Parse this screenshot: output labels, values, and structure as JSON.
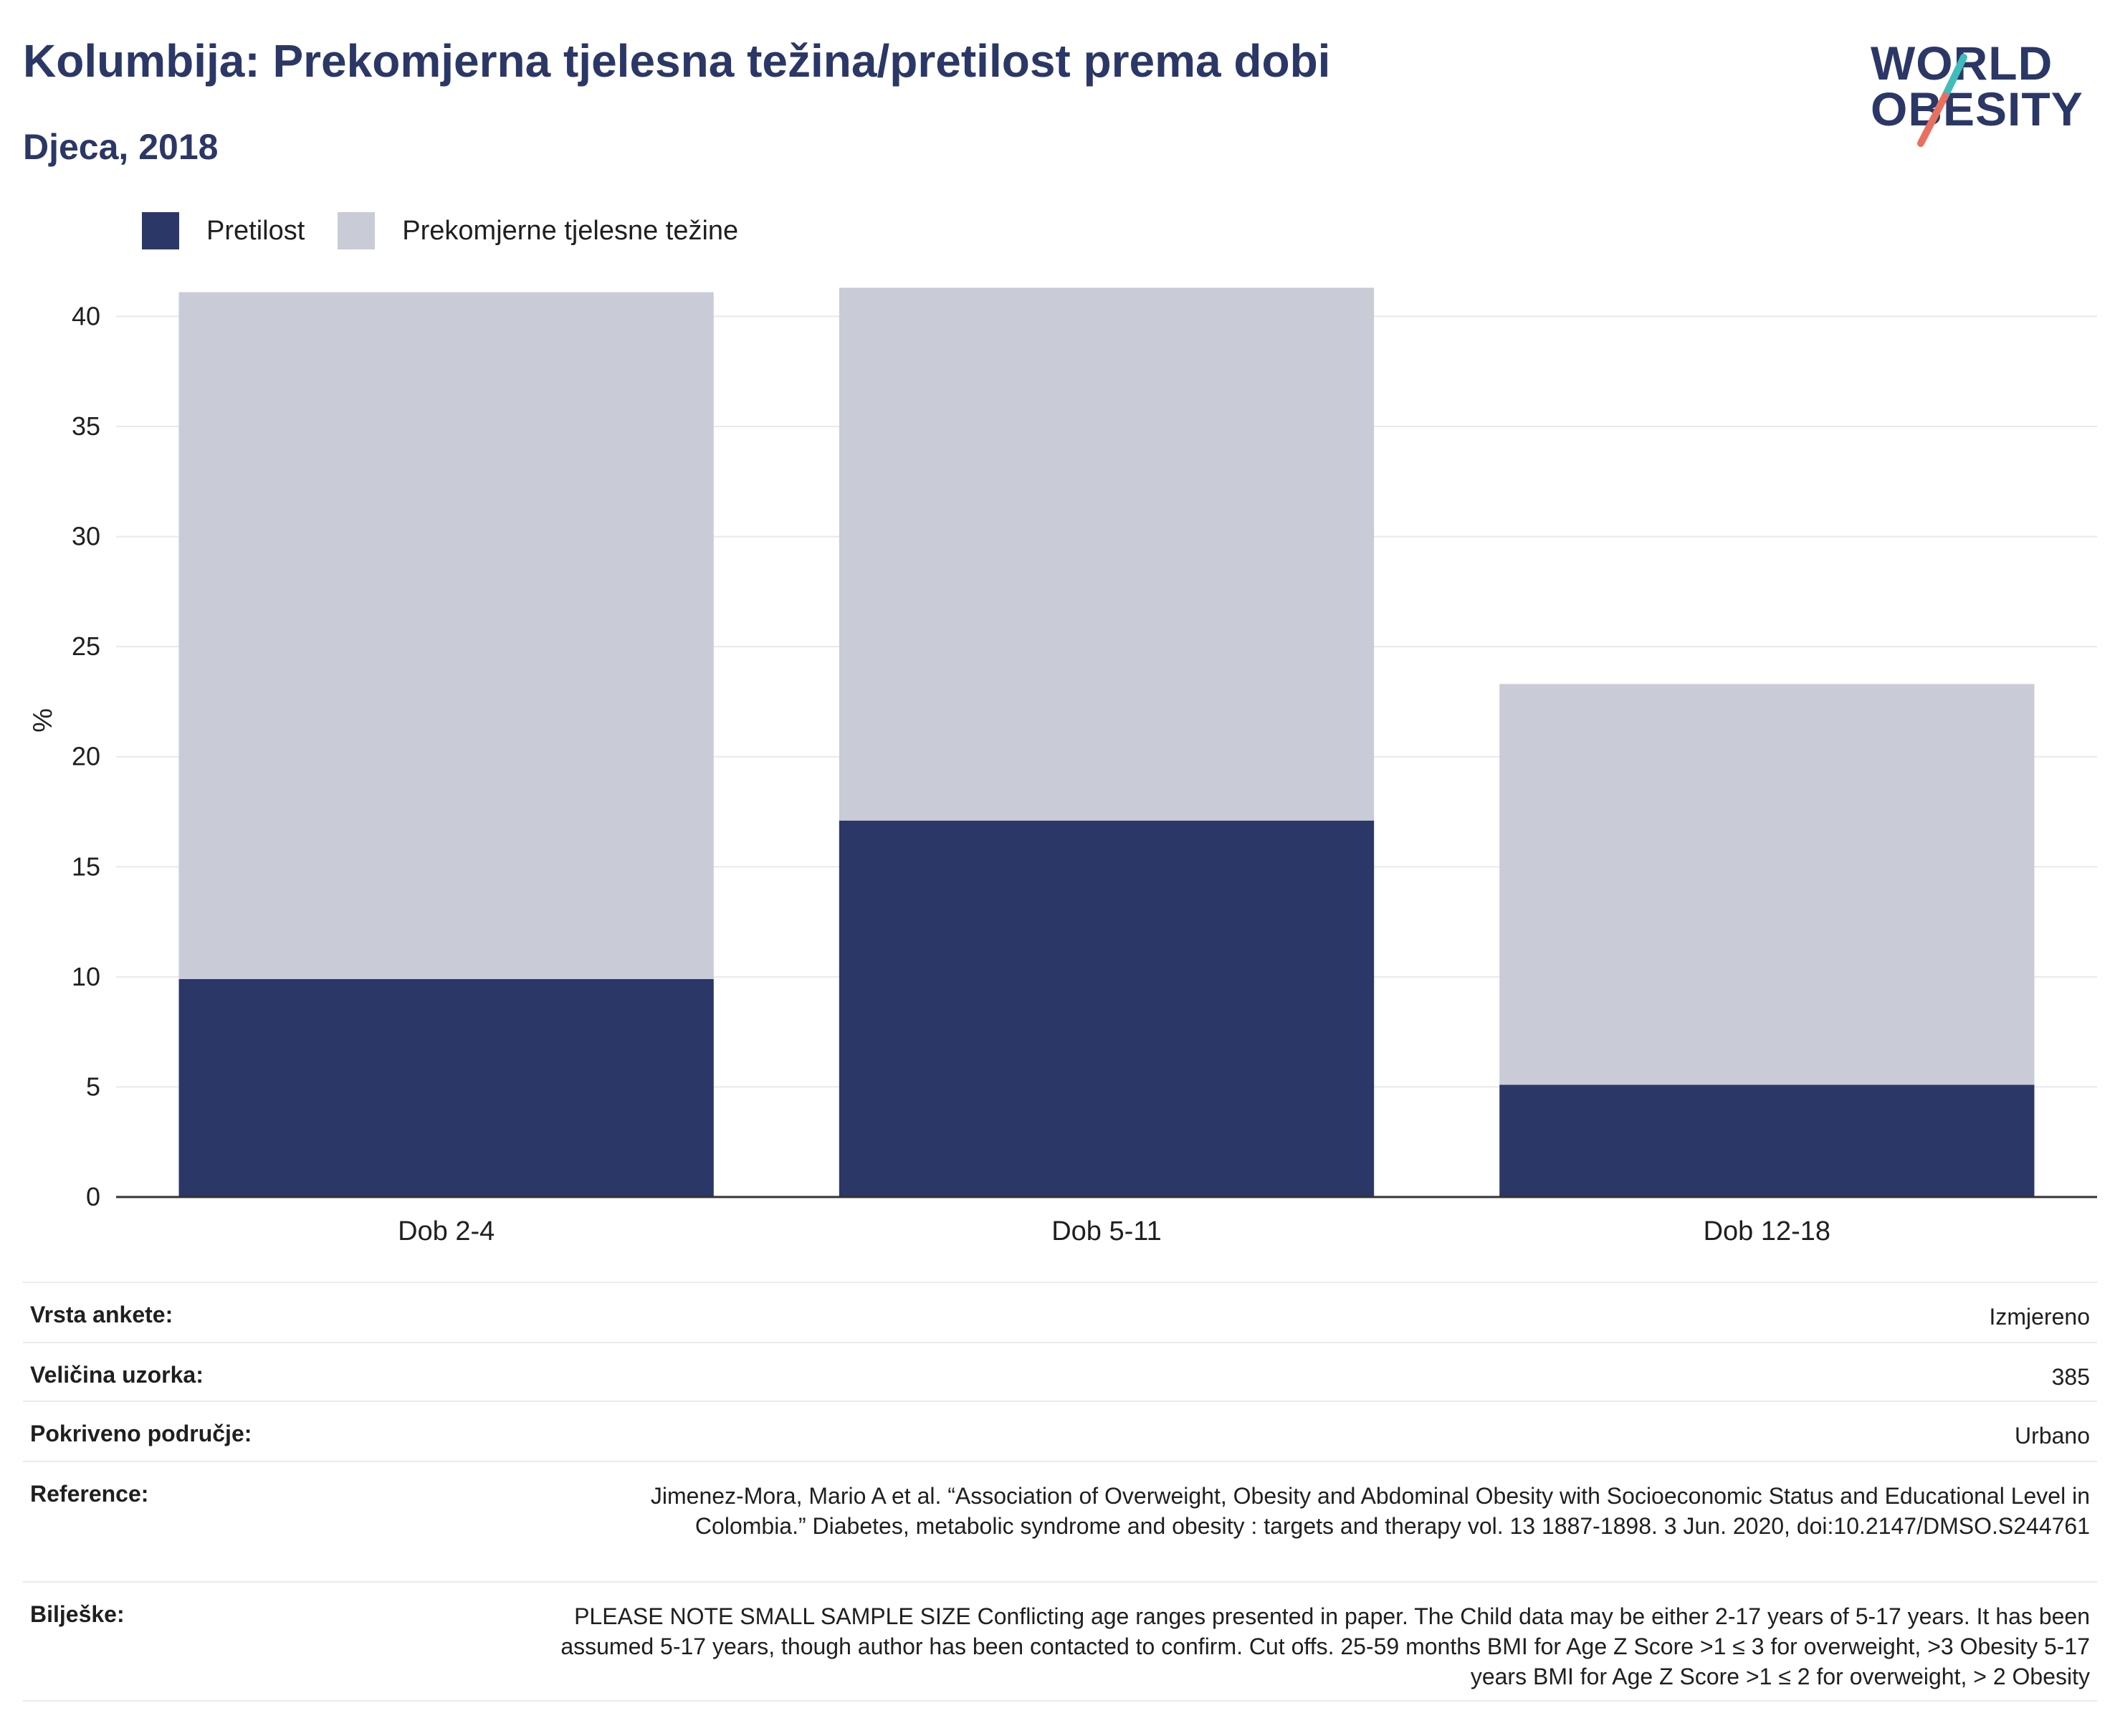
{
  "header": {
    "title": "Kolumbija: Prekomjerna tjelesna težina/pretilost prema dobi",
    "subtitle": "Djeca, 2018"
  },
  "logo": {
    "line1": "WORLD",
    "line2": "OBESITY",
    "colors": {
      "text": "#2b3766",
      "slash_teal": "#3fbcbc",
      "slash_coral": "#e8705f"
    }
  },
  "colors": {
    "obesity": "#2b3766",
    "overweight": "#c9cbd7",
    "gridline": "#e8e8ee",
    "axis": "#333333"
  },
  "chart_data": {
    "type": "bar",
    "stacked": true,
    "categories": [
      "Dob 2-4",
      "Dob 5-11",
      "Dob 12-18"
    ],
    "series": [
      {
        "name": "Pretilost",
        "values": [
          9.9,
          17.1,
          5.1
        ]
      },
      {
        "name": "Prekomjerne tjelesne težine",
        "values": [
          31.2,
          24.2,
          18.2
        ]
      }
    ],
    "ylabel": "%",
    "ylim": [
      0,
      42
    ],
    "yticks": [
      0,
      5,
      10,
      15,
      20,
      25,
      30,
      35,
      40
    ],
    "grid": true,
    "legend": "top-left"
  },
  "info": {
    "rows": [
      {
        "label": "Vrsta ankete:",
        "value": "Izmjereno"
      },
      {
        "label": "Veličina uzorka:",
        "value": "385"
      },
      {
        "label": "Pokriveno područje:",
        "value": "Urbano"
      },
      {
        "label": "Reference:",
        "value": "Jimenez-Mora, Mario A et al. “Association of Overweight, Obesity and Abdominal Obesity with Socioeconomic Status and Educational Level in Colombia.” Diabetes, metabolic syndrome and obesity : targets and therapy vol. 13 1887-1898. 3 Jun. 2020, doi:10.2147/DMSO.S244761"
      },
      {
        "label": "Bilješke:",
        "value": "PLEASE NOTE SMALL SAMPLE SIZE Conflicting age ranges presented in paper. The Child data may be either 2-17 years of 5-17 years. It has been assumed 5-17 years, though author has been contacted to confirm. Cut offs. 25-59 months BMI for Age Z Score >1 ≤ 3 for overweight, >3 Obesity 5-17 years BMI for Age Z Score >1 ≤ 2 for overweight, > 2 Obesity"
      }
    ]
  }
}
